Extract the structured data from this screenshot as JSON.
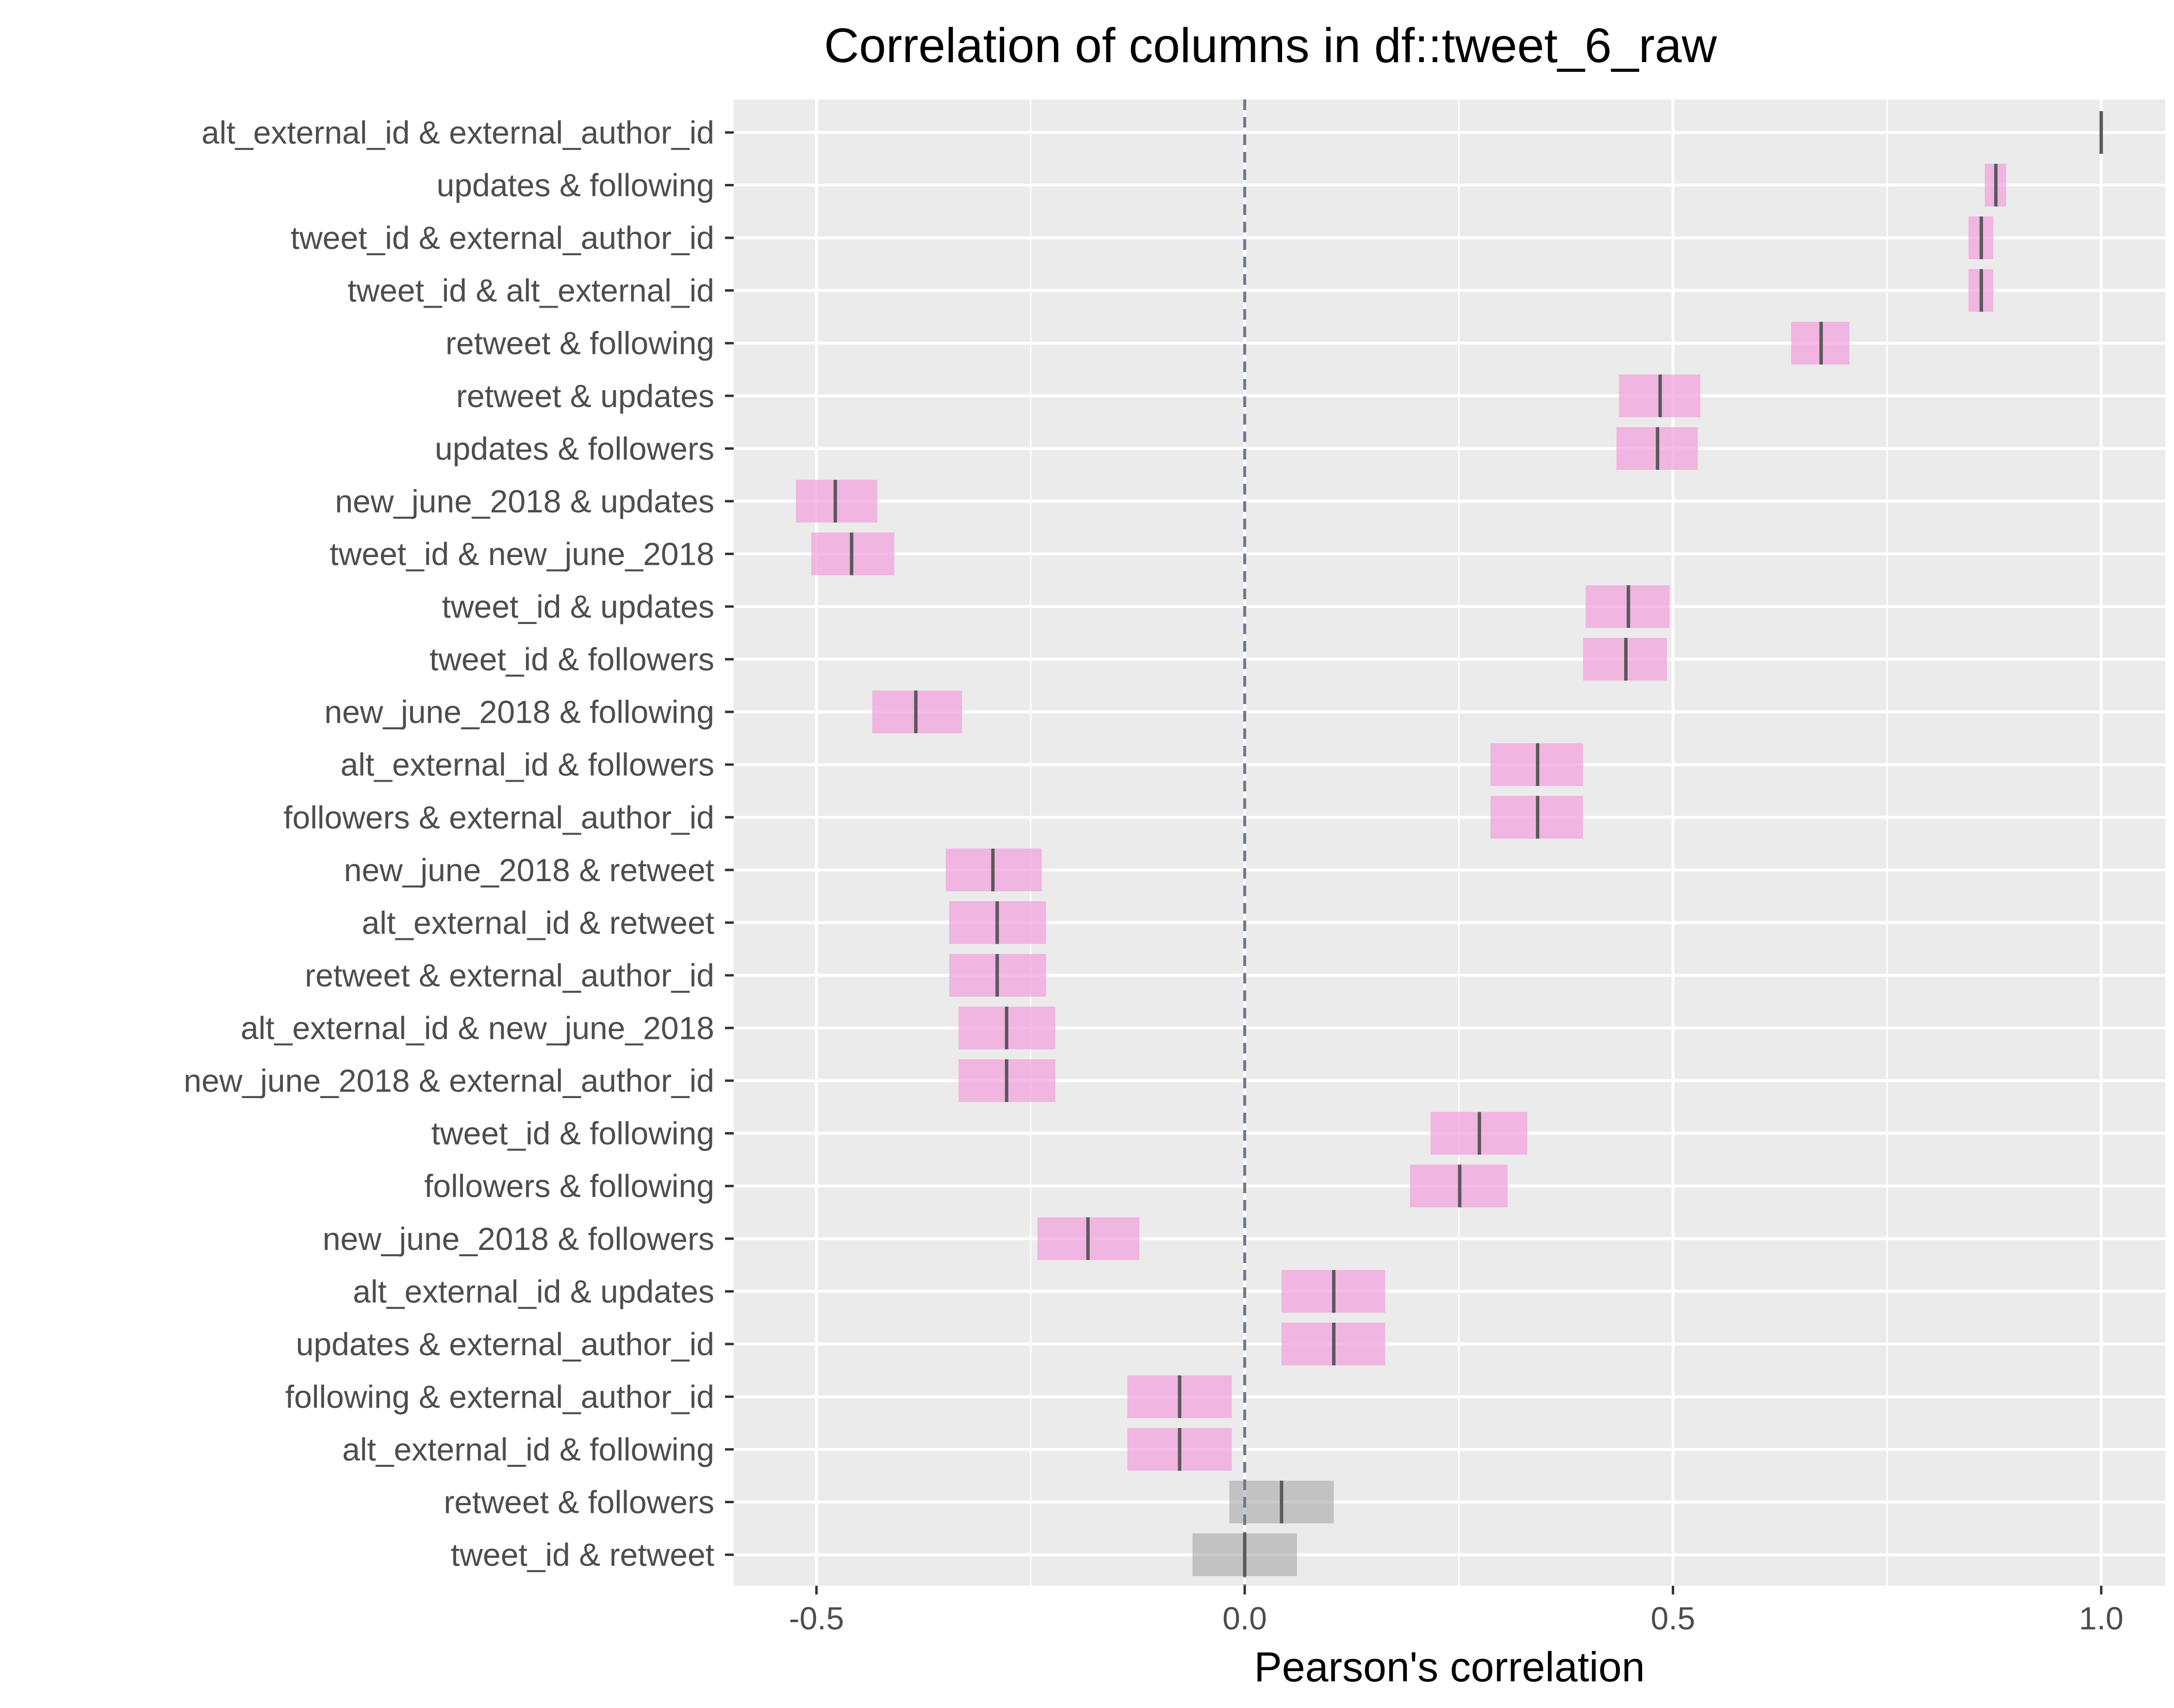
{
  "chart_data": {
    "type": "interval",
    "title": "Correlation of columns in df::tweet_6_raw",
    "xlabel": "Pearson's correlation",
    "ylabel": "",
    "xlim": [
      -0.6,
      1.07
    ],
    "x_ticks": [
      -0.5,
      0.0,
      0.5,
      1.0
    ],
    "x_tick_labels": [
      "-0.5",
      "0.0",
      "0.5",
      "1.0"
    ],
    "reference_line": 0.0,
    "grid": true,
    "colors": {
      "significant": "#f2a3dc",
      "not_significant": "#a6a6a6",
      "estimate": "#595959",
      "zero_line": "#6b7a8f",
      "panel": "#ebebeb",
      "grid": "#ffffff"
    },
    "rows": [
      {
        "label": "alt_external_id & external_author_id",
        "r": 1.0,
        "lo": 1.0,
        "hi": 1.0,
        "significant": true
      },
      {
        "label": "updates & following",
        "r": 0.877,
        "lo": 0.864,
        "hi": 0.889,
        "significant": true
      },
      {
        "label": "tweet_id & external_author_id",
        "r": 0.86,
        "lo": 0.845,
        "hi": 0.874,
        "significant": true
      },
      {
        "label": "tweet_id & alt_external_id",
        "r": 0.86,
        "lo": 0.845,
        "hi": 0.874,
        "significant": true
      },
      {
        "label": "retweet & following",
        "r": 0.673,
        "lo": 0.638,
        "hi": 0.706,
        "significant": true
      },
      {
        "label": "retweet & updates",
        "r": 0.485,
        "lo": 0.437,
        "hi": 0.532,
        "significant": true
      },
      {
        "label": "updates & followers",
        "r": 0.482,
        "lo": 0.434,
        "hi": 0.529,
        "significant": true
      },
      {
        "label": "new_june_2018 & updates",
        "r": -0.478,
        "lo": -0.524,
        "hi": -0.429,
        "significant": true
      },
      {
        "label": "tweet_id & new_june_2018",
        "r": -0.459,
        "lo": -0.506,
        "hi": -0.409,
        "significant": true
      },
      {
        "label": "tweet_id & updates",
        "r": 0.448,
        "lo": 0.398,
        "hi": 0.496,
        "significant": true
      },
      {
        "label": "tweet_id & followers",
        "r": 0.445,
        "lo": 0.395,
        "hi": 0.493,
        "significant": true
      },
      {
        "label": "new_june_2018 & following",
        "r": -0.384,
        "lo": -0.435,
        "hi": -0.33,
        "significant": true
      },
      {
        "label": "alt_external_id & followers",
        "r": 0.342,
        "lo": 0.287,
        "hi": 0.395,
        "significant": true
      },
      {
        "label": "followers & external_author_id",
        "r": 0.342,
        "lo": 0.287,
        "hi": 0.395,
        "significant": true
      },
      {
        "label": "new_june_2018 & retweet",
        "r": -0.294,
        "lo": -0.349,
        "hi": -0.237,
        "significant": true
      },
      {
        "label": "alt_external_id & retweet",
        "r": -0.289,
        "lo": -0.345,
        "hi": -0.232,
        "significant": true
      },
      {
        "label": "retweet & external_author_id",
        "r": -0.289,
        "lo": -0.345,
        "hi": -0.232,
        "significant": true
      },
      {
        "label": "alt_external_id & new_june_2018",
        "r": -0.278,
        "lo": -0.334,
        "hi": -0.221,
        "significant": true
      },
      {
        "label": "new_june_2018 & external_author_id",
        "r": -0.278,
        "lo": -0.334,
        "hi": -0.221,
        "significant": true
      },
      {
        "label": "tweet_id & following",
        "r": 0.274,
        "lo": 0.217,
        "hi": 0.33,
        "significant": true
      },
      {
        "label": "followers & following",
        "r": 0.251,
        "lo": 0.193,
        "hi": 0.307,
        "significant": true
      },
      {
        "label": "new_june_2018 & followers",
        "r": -0.183,
        "lo": -0.242,
        "hi": -0.123,
        "significant": true
      },
      {
        "label": "alt_external_id & updates",
        "r": 0.104,
        "lo": 0.043,
        "hi": 0.164,
        "significant": true
      },
      {
        "label": "updates & external_author_id",
        "r": 0.104,
        "lo": 0.043,
        "hi": 0.164,
        "significant": true
      },
      {
        "label": "following & external_author_id",
        "r": -0.076,
        "lo": -0.137,
        "hi": -0.015,
        "significant": true
      },
      {
        "label": "alt_external_id & following",
        "r": -0.076,
        "lo": -0.137,
        "hi": -0.015,
        "significant": true
      },
      {
        "label": "retweet & followers",
        "r": 0.043,
        "lo": -0.018,
        "hi": 0.104,
        "significant": false
      },
      {
        "label": "tweet_id & retweet",
        "r": 0.0,
        "lo": -0.061,
        "hi": 0.061,
        "significant": false
      }
    ]
  }
}
